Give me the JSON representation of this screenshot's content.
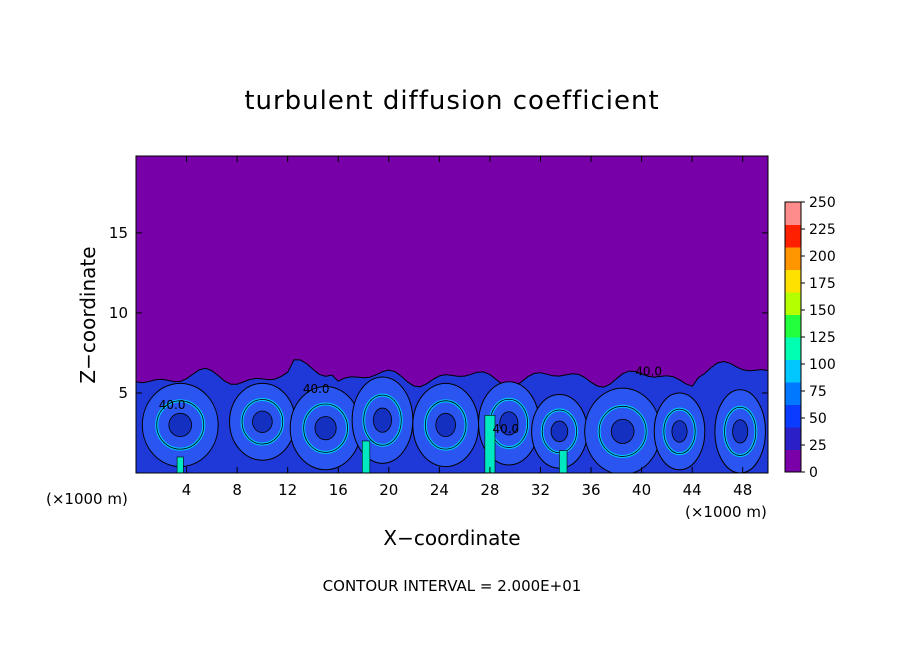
{
  "chart_data": {
    "type": "heatmap",
    "title": "turbulent diffusion coefficient",
    "xlabel": "X−coordinate",
    "ylabel": "Z−coordinate",
    "x_unit": "(×1000 m)",
    "x_ticks": [
      4,
      8,
      12,
      16,
      20,
      24,
      28,
      32,
      36,
      40,
      44,
      48
    ],
    "y_ticks": [
      5,
      10,
      15
    ],
    "xlim": [
      0,
      50
    ],
    "ylim": [
      0,
      19.8
    ],
    "colorbar": {
      "ticks": [
        0,
        25,
        50,
        75,
        100,
        125,
        150,
        175,
        200,
        225,
        250
      ],
      "range": [
        0,
        250
      ],
      "colors": [
        "#7a00a8",
        "#2b1fc8",
        "#0a3cff",
        "#0078ff",
        "#00c8ff",
        "#00ffb0",
        "#22ff3c",
        "#b4ff00",
        "#ffe100",
        "#ff9600",
        "#ff2000",
        "#ff8c8c"
      ]
    },
    "background_color": "#7700a8",
    "boundary_layer_top_km": 6.5,
    "contour_labels": [
      "40.0",
      "40.0",
      "40.0",
      "40.0"
    ],
    "contour_interval_text": "CONTOUR INTERVAL = 2.000E+01"
  }
}
